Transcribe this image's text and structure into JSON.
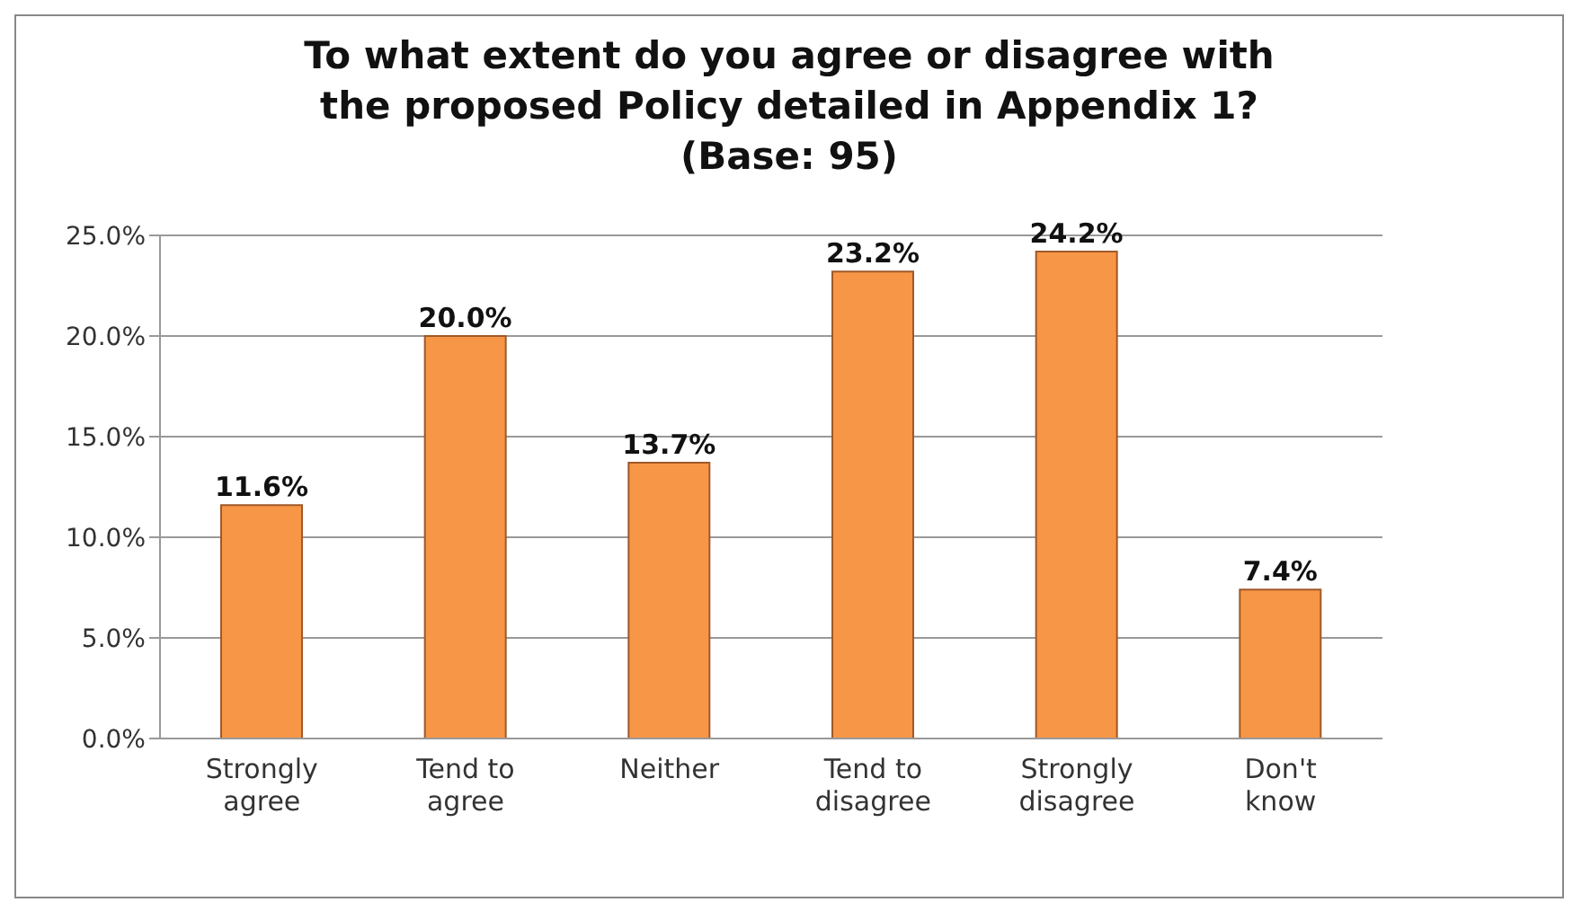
{
  "chart_data": {
    "type": "bar",
    "title": "To what extent do you agree or disagree with the proposed Policy detailed in Appendix 1? (Base: 95)",
    "categories": [
      "Strongly agree",
      "Tend to agree",
      "Neither",
      "Tend to disagree",
      "Strongly disagree",
      "Don't know"
    ],
    "values": [
      11.6,
      20.0,
      13.7,
      23.2,
      24.2,
      7.4
    ],
    "value_labels": [
      "11.6%",
      "20.0%",
      "13.7%",
      "23.2%",
      "24.2%",
      "7.4%"
    ],
    "color": "#f79646",
    "ylim": [
      0,
      25
    ],
    "yticks": [
      {
        "value": 0,
        "label": "0.0%"
      },
      {
        "value": 5,
        "label": "5.0%"
      },
      {
        "value": 10,
        "label": "10.0%"
      },
      {
        "value": 15,
        "label": "15.0%"
      },
      {
        "value": 20,
        "label": "20.0%"
      },
      {
        "value": 25,
        "label": "25.0%"
      }
    ],
    "grid": "y",
    "legend": false
  }
}
